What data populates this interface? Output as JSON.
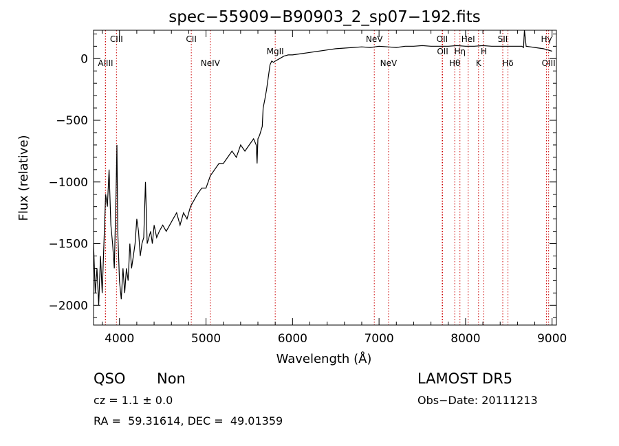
{
  "chart_data": {
    "type": "line",
    "title": "spec−55909−B90903_2_sp07−192.fits",
    "xlabel": "Wavelength (Å)",
    "ylabel": "Flux (relative)",
    "xlim": [
      3700,
      9050
    ],
    "ylim": [
      -2160,
      230
    ],
    "x_ticks": [
      4000,
      5000,
      6000,
      7000,
      8000,
      9000
    ],
    "x_tick_labels": [
      "4000",
      "5000",
      "6000",
      "7000",
      "8000",
      "9000"
    ],
    "y_ticks": [
      0,
      -500,
      -1000,
      -1500,
      -2000
    ],
    "y_tick_labels": [
      "0",
      "−500",
      "−1000",
      "−1500",
      "−2000"
    ],
    "grid": false,
    "legend": "none",
    "line_color": "#000000",
    "marker_color": "#cc0000",
    "series": [
      {
        "values_note": "approximate digitised spectrum",
        "x": [
          3700,
          3720,
          3740,
          3760,
          3780,
          3800,
          3820,
          3840,
          3860,
          3880,
          3900,
          3920,
          3940,
          3960,
          3970,
          3980,
          4000,
          4020,
          4040,
          4060,
          4080,
          4100,
          4120,
          4140,
          4160,
          4180,
          4200,
          4220,
          4240,
          4260,
          4280,
          4300,
          4320,
          4340,
          4360,
          4380,
          4400,
          4430,
          4460,
          4500,
          4540,
          4580,
          4620,
          4660,
          4700,
          4740,
          4780,
          4820,
          4860,
          4900,
          4950,
          5000,
          5050,
          5100,
          5150,
          5200,
          5250,
          5300,
          5350,
          5400,
          5450,
          5500,
          5550,
          5580,
          5590,
          5600,
          5620,
          5650,
          5660,
          5680,
          5700,
          5720,
          5740,
          5760,
          5780,
          5800,
          5850,
          5900,
          5950,
          6000,
          6100,
          6200,
          6300,
          6400,
          6500,
          6600,
          6700,
          6800,
          6900,
          7000,
          7100,
          7200,
          7300,
          7400,
          7500,
          7600,
          7700,
          7800,
          7900,
          8000,
          8100,
          8200,
          8300,
          8400,
          8500,
          8600,
          8650,
          8670,
          8680,
          8700,
          8750,
          8800,
          8850,
          8900,
          8950,
          9000
        ],
        "y": [
          -1500,
          -1900,
          -1700,
          -2000,
          -1600,
          -1900,
          -1500,
          -1100,
          -1200,
          -900,
          -1350,
          -1500,
          -1700,
          -1100,
          -700,
          -1400,
          -1800,
          -1950,
          -1700,
          -1900,
          -1700,
          -1800,
          -1500,
          -1700,
          -1600,
          -1500,
          -1300,
          -1400,
          -1600,
          -1500,
          -1450,
          -1000,
          -1500,
          -1450,
          -1400,
          -1500,
          -1350,
          -1450,
          -1400,
          -1350,
          -1400,
          -1350,
          -1300,
          -1250,
          -1350,
          -1250,
          -1300,
          -1200,
          -1150,
          -1100,
          -1050,
          -1050,
          -950,
          -900,
          -850,
          -850,
          -800,
          -750,
          -800,
          -700,
          -750,
          -700,
          -650,
          -700,
          -850,
          -650,
          -620,
          -550,
          -400,
          -330,
          -250,
          -150,
          -50,
          -20,
          -30,
          -20,
          0,
          20,
          30,
          30,
          40,
          50,
          60,
          70,
          80,
          85,
          90,
          95,
          90,
          100,
          95,
          90,
          100,
          100,
          105,
          100,
          100,
          100,
          105,
          100,
          100,
          105,
          100,
          100,
          100,
          100,
          100,
          90,
          300,
          100,
          95,
          90,
          85,
          80,
          70,
          60
        ]
      }
    ],
    "line_markers": [
      {
        "wavelength": 3839,
        "label": "AlIII",
        "row": "lower"
      },
      {
        "wavelength": 3837,
        "label": "",
        "row": "lower"
      },
      {
        "wavelength": 3965,
        "label": "CIII",
        "row": "upper"
      },
      {
        "wavelength": 4830,
        "label": "CII",
        "row": "upper"
      },
      {
        "wavelength": 5050,
        "label": "NeIV",
        "row": "lower"
      },
      {
        "wavelength": 5800,
        "label": "MgII",
        "row": "middle"
      },
      {
        "wavelength": 6945,
        "label": "NeV",
        "row": "upper"
      },
      {
        "wavelength": 7110,
        "label": "NeV",
        "row": "lower"
      },
      {
        "wavelength": 7730,
        "label": "OII",
        "row": "upper"
      },
      {
        "wavelength": 7735,
        "label": "OII",
        "row": "middle"
      },
      {
        "wavelength": 7875,
        "label": "Hθ",
        "row": "lower"
      },
      {
        "wavelength": 7935,
        "label": "Hη",
        "row": "middle"
      },
      {
        "wavelength": 8030,
        "label": "HeI",
        "row": "upper"
      },
      {
        "wavelength": 8150,
        "label": "K",
        "row": "lower"
      },
      {
        "wavelength": 8210,
        "label": "H",
        "row": "middle"
      },
      {
        "wavelength": 8430,
        "label": "SII",
        "row": "upper"
      },
      {
        "wavelength": 8490,
        "label": "Hδ",
        "row": "lower"
      },
      {
        "wavelength": 8935,
        "label": "Hγ",
        "row": "upper"
      },
      {
        "wavelength": 8960,
        "label": "OIII",
        "row": "lower"
      }
    ]
  },
  "info": {
    "object_class": "QSO",
    "subclass": "Non",
    "redshift": "cz = 1.1 ± 0.0",
    "coordinates": "RA =  59.31614, DEC =  49.01359",
    "survey": "LAMOST DR5",
    "obs_date": "Obs−Date: 20111213"
  }
}
